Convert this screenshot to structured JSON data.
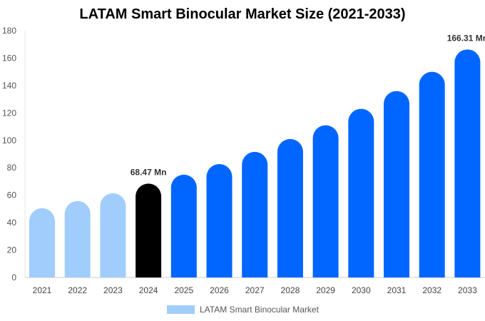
{
  "chart_data": {
    "type": "bar",
    "title": "LATAM Smart Binocular Market Size (2021-2033)",
    "categories": [
      "2021",
      "2022",
      "2023",
      "2024",
      "2025",
      "2026",
      "2027",
      "2028",
      "2029",
      "2030",
      "2031",
      "2032",
      "2033"
    ],
    "series": [
      {
        "name": "LATAM Smart Binocular Market",
        "values": [
          50.5,
          55.7,
          61.4,
          68.47,
          75.0,
          82.7,
          91.6,
          101.0,
          111.0,
          123.0,
          136.0,
          150.0,
          166.31
        ]
      }
    ],
    "data_labels": [
      {
        "category": "2024",
        "text": "68.47 Mn"
      },
      {
        "category": "2033",
        "text": "166.31 Mn"
      }
    ],
    "ylim": [
      0,
      180
    ],
    "yticks": [
      0,
      20,
      40,
      60,
      80,
      100,
      120,
      140,
      160,
      180
    ],
    "grid": false,
    "legend": "bottom",
    "colors": {
      "historical": "#a0cdfc",
      "current": "#000000",
      "forecast": "#0066ff"
    }
  }
}
